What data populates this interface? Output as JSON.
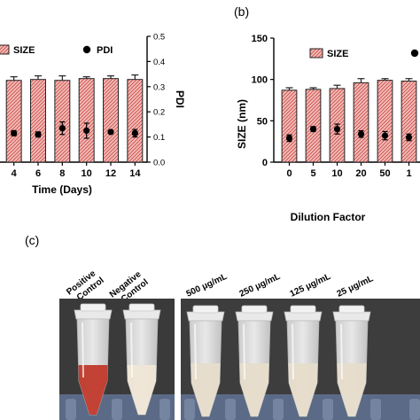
{
  "panels": {
    "b_label": "(b)",
    "c_label": "(c)"
  },
  "chart_data": [
    {
      "type": "bar",
      "panel": "a",
      "xlabel": "Time (Days)",
      "categories": [
        "4",
        "6",
        "8",
        "10",
        "12",
        "14"
      ],
      "legend": [
        {
          "label": "SIZE",
          "marker": "hatched-bar"
        },
        {
          "label": "PDI",
          "marker": "circle"
        }
      ],
      "series": [
        {
          "name": "SIZE",
          "values": [
            91,
            92,
            91,
            93,
            93,
            92
          ],
          "errors": [
            4,
            4,
            5,
            2,
            3,
            5
          ]
        },
        {
          "name": "PDI",
          "axis": "right",
          "values": [
            0.115,
            0.11,
            0.135,
            0.125,
            0.12,
            0.115
          ],
          "errors": [
            0.01,
            0.01,
            0.025,
            0.03,
            0.005,
            0.015
          ]
        }
      ],
      "ylim": [
        0,
        140
      ],
      "y2label": "PDI",
      "y2lim": [
        0,
        0.5
      ],
      "y2ticks": [
        "0.0",
        "0.1",
        "0.2",
        "0.3",
        "0.4",
        "0.5"
      ],
      "grid": false,
      "legend_placement": "top"
    },
    {
      "type": "bar",
      "panel": "b",
      "xlabel": "Dilution Factor",
      "ylabel": "SIZE (nm)",
      "categories": [
        "0",
        "5",
        "10",
        "20",
        "50",
        "1"
      ],
      "legend": [
        {
          "label": "SIZE",
          "marker": "hatched-bar"
        },
        {
          "label": "",
          "marker": "circle"
        }
      ],
      "series": [
        {
          "name": "SIZE",
          "values": [
            87,
            88,
            89,
            96,
            99,
            98
          ],
          "errors": [
            3,
            2,
            4,
            5,
            2,
            3
          ]
        },
        {
          "values": [
            29,
            40,
            40,
            34,
            32,
            30
          ],
          "errors": [
            4,
            3,
            6,
            4,
            5,
            4
          ]
        }
      ],
      "ylim": [
        0,
        150
      ],
      "yticks": [
        "0",
        "50",
        "100",
        "150"
      ],
      "grid": false,
      "legend_placement": "top"
    }
  ],
  "tubes": {
    "labels": [
      "Positive Control",
      "Negative Control",
      "500 μg/mL",
      "250 μg/mL",
      "125 μg/mL",
      "25 μg/mL"
    ],
    "positive_line1": "Positive",
    "positive_line2": "Control",
    "negative_line1": "Negative",
    "negative_line2": "Control",
    "colors": {
      "positive_liquid": "#c0392b",
      "negative_liquid": "#efe6d6",
      "sample_liquid": "#e6dccb",
      "background": "#3a3a3a"
    }
  }
}
